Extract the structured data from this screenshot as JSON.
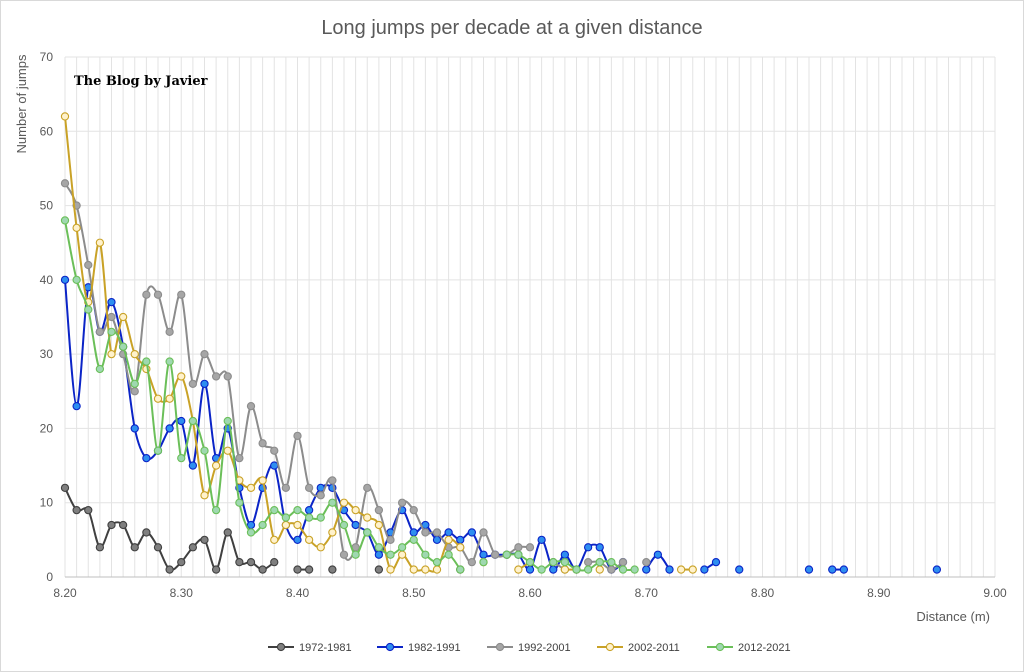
{
  "chart_data": {
    "type": "line",
    "title": "Long jumps per decade at a given distance",
    "watermark": "The Blog by Javier",
    "xlabel": "Distance (m)",
    "ylabel": "Number of jumps",
    "xlim": [
      8.2,
      9.0
    ],
    "ylim": [
      0,
      70
    ],
    "x_ticks": [
      "8.20",
      "8.30",
      "8.40",
      "8.50",
      "8.60",
      "8.70",
      "8.80",
      "8.90",
      "9.00"
    ],
    "y_ticks": [
      "0",
      "10",
      "20",
      "30",
      "40",
      "50",
      "60",
      "70"
    ],
    "grid": true,
    "legend_position": "bottom",
    "series": [
      {
        "name": "1972-1981",
        "color": "#404040",
        "marker_fill": "#7f7f7f",
        "segments": [
          [
            [
              8.2,
              12
            ],
            [
              8.21,
              9
            ],
            [
              8.22,
              9
            ],
            [
              8.23,
              4
            ],
            [
              8.24,
              7
            ],
            [
              8.25,
              7
            ],
            [
              8.26,
              4
            ],
            [
              8.27,
              6
            ],
            [
              8.28,
              4
            ],
            [
              8.29,
              1
            ],
            [
              8.3,
              2
            ],
            [
              8.31,
              4
            ],
            [
              8.32,
              5
            ],
            [
              8.33,
              1
            ],
            [
              8.34,
              6
            ],
            [
              8.35,
              2
            ],
            [
              8.36,
              2
            ],
            [
              8.37,
              1
            ],
            [
              8.38,
              2
            ]
          ],
          [
            [
              8.4,
              1
            ],
            [
              8.41,
              1
            ]
          ],
          [
            [
              8.43,
              1
            ]
          ],
          [
            [
              8.47,
              1
            ]
          ],
          [
            [
              8.54,
              1
            ]
          ]
        ]
      },
      {
        "name": "1982-1991",
        "color": "#0b24c7",
        "marker_fill": "#2e8ef0",
        "segments": [
          [
            [
              8.2,
              40
            ],
            [
              8.21,
              23
            ],
            [
              8.22,
              39
            ],
            [
              8.23,
              33
            ],
            [
              8.24,
              37
            ],
            [
              8.25,
              31
            ],
            [
              8.26,
              20
            ],
            [
              8.27,
              16
            ],
            [
              8.28,
              17
            ],
            [
              8.29,
              20
            ],
            [
              8.3,
              21
            ],
            [
              8.31,
              15
            ],
            [
              8.32,
              26
            ],
            [
              8.33,
              16
            ],
            [
              8.34,
              20
            ],
            [
              8.35,
              12
            ],
            [
              8.36,
              7
            ],
            [
              8.37,
              12
            ],
            [
              8.38,
              15
            ],
            [
              8.39,
              7
            ],
            [
              8.4,
              5
            ],
            [
              8.41,
              9
            ],
            [
              8.42,
              12
            ],
            [
              8.43,
              12
            ],
            [
              8.44,
              9
            ],
            [
              8.45,
              7
            ],
            [
              8.46,
              6
            ],
            [
              8.47,
              3
            ],
            [
              8.48,
              6
            ],
            [
              8.49,
              9
            ],
            [
              8.5,
              6
            ],
            [
              8.51,
              7
            ],
            [
              8.52,
              5
            ],
            [
              8.53,
              6
            ],
            [
              8.54,
              5
            ],
            [
              8.55,
              6
            ],
            [
              8.56,
              3
            ],
            [
              8.57,
              3
            ],
            [
              8.58,
              3
            ],
            [
              8.59,
              3
            ],
            [
              8.6,
              1
            ],
            [
              8.61,
              5
            ],
            [
              8.62,
              1
            ],
            [
              8.63,
              3
            ],
            [
              8.64,
              1
            ],
            [
              8.65,
              4
            ],
            [
              8.66,
              4
            ],
            [
              8.67,
              1
            ],
            [
              8.68,
              2
            ]
          ],
          [
            [
              8.7,
              1
            ],
            [
              8.71,
              3
            ],
            [
              8.72,
              1
            ]
          ],
          [
            [
              8.75,
              1
            ],
            [
              8.76,
              2
            ]
          ],
          [
            [
              8.78,
              1
            ]
          ],
          [
            [
              8.84,
              1
            ]
          ],
          [
            [
              8.86,
              1
            ],
            [
              8.87,
              1
            ]
          ],
          [
            [
              8.95,
              1
            ]
          ]
        ]
      },
      {
        "name": "1992-2001",
        "color": "#8c8c8c",
        "marker_fill": "#a6a6a6",
        "segments": [
          [
            [
              8.2,
              53
            ],
            [
              8.21,
              50
            ],
            [
              8.22,
              42
            ],
            [
              8.23,
              33
            ],
            [
              8.24,
              35
            ],
            [
              8.25,
              30
            ],
            [
              8.26,
              25
            ],
            [
              8.27,
              38
            ],
            [
              8.28,
              38
            ],
            [
              8.29,
              33
            ],
            [
              8.3,
              38
            ],
            [
              8.31,
              26
            ],
            [
              8.32,
              30
            ],
            [
              8.33,
              27
            ],
            [
              8.34,
              27
            ],
            [
              8.35,
              16
            ],
            [
              8.36,
              23
            ],
            [
              8.37,
              18
            ],
            [
              8.38,
              17
            ],
            [
              8.39,
              12
            ],
            [
              8.4,
              19
            ],
            [
              8.41,
              12
            ],
            [
              8.42,
              11
            ],
            [
              8.43,
              13
            ],
            [
              8.44,
              3
            ],
            [
              8.45,
              4
            ],
            [
              8.46,
              12
            ],
            [
              8.47,
              9
            ],
            [
              8.48,
              5
            ],
            [
              8.49,
              10
            ],
            [
              8.5,
              9
            ],
            [
              8.51,
              6
            ],
            [
              8.52,
              6
            ],
            [
              8.53,
              4
            ],
            [
              8.54,
              4
            ],
            [
              8.55,
              2
            ],
            [
              8.56,
              6
            ],
            [
              8.57,
              3
            ],
            [
              8.58,
              3
            ],
            [
              8.59,
              4
            ],
            [
              8.6,
              4
            ]
          ],
          [
            [
              8.62,
              2
            ],
            [
              8.63,
              1
            ]
          ],
          [
            [
              8.65,
              2
            ],
            [
              8.66,
              2
            ],
            [
              8.67,
              1
            ],
            [
              8.68,
              2
            ]
          ],
          [
            [
              8.7,
              2
            ]
          ]
        ]
      },
      {
        "name": "2002-2011",
        "color": "#c9a227",
        "marker_fill": "#fff2cc",
        "segments": [
          [
            [
              8.2,
              62
            ],
            [
              8.21,
              47
            ],
            [
              8.22,
              37
            ],
            [
              8.23,
              45
            ],
            [
              8.24,
              30
            ],
            [
              8.25,
              35
            ],
            [
              8.26,
              30
            ],
            [
              8.27,
              28
            ],
            [
              8.28,
              24
            ],
            [
              8.29,
              24
            ],
            [
              8.3,
              27
            ],
            [
              8.31,
              21
            ],
            [
              8.32,
              11
            ],
            [
              8.33,
              15
            ],
            [
              8.34,
              17
            ],
            [
              8.35,
              13
            ],
            [
              8.36,
              12
            ],
            [
              8.37,
              13
            ],
            [
              8.38,
              5
            ],
            [
              8.39,
              7
            ],
            [
              8.4,
              7
            ],
            [
              8.41,
              5
            ],
            [
              8.42,
              4
            ],
            [
              8.43,
              6
            ],
            [
              8.44,
              10
            ],
            [
              8.45,
              9
            ],
            [
              8.46,
              8
            ],
            [
              8.47,
              7
            ],
            [
              8.48,
              1
            ],
            [
              8.49,
              3
            ],
            [
              8.5,
              1
            ],
            [
              8.51,
              1
            ],
            [
              8.52,
              1
            ],
            [
              8.53,
              5
            ],
            [
              8.54,
              4
            ]
          ],
          [
            [
              8.56,
              2
            ]
          ],
          [
            [
              8.59,
              1
            ],
            [
              8.6,
              2
            ]
          ],
          [
            [
              8.63,
              1
            ],
            [
              8.64,
              1
            ]
          ],
          [
            [
              8.66,
              1
            ]
          ],
          [
            [
              8.73,
              1
            ],
            [
              8.74,
              1
            ]
          ]
        ]
      },
      {
        "name": "2012-2021",
        "color": "#6bbf59",
        "marker_fill": "#9fd8b0",
        "segments": [
          [
            [
              8.2,
              48
            ],
            [
              8.21,
              40
            ],
            [
              8.22,
              36
            ],
            [
              8.23,
              28
            ],
            [
              8.24,
              33
            ],
            [
              8.25,
              31
            ],
            [
              8.26,
              26
            ],
            [
              8.27,
              29
            ],
            [
              8.28,
              17
            ],
            [
              8.29,
              29
            ],
            [
              8.3,
              16
            ],
            [
              8.31,
              21
            ],
            [
              8.32,
              17
            ],
            [
              8.33,
              9
            ],
            [
              8.34,
              21
            ],
            [
              8.35,
              10
            ],
            [
              8.36,
              6
            ],
            [
              8.37,
              7
            ],
            [
              8.38,
              9
            ],
            [
              8.39,
              8
            ],
            [
              8.4,
              9
            ],
            [
              8.41,
              8
            ],
            [
              8.42,
              8
            ],
            [
              8.43,
              10
            ],
            [
              8.44,
              7
            ],
            [
              8.45,
              3
            ],
            [
              8.46,
              6
            ],
            [
              8.47,
              4
            ],
            [
              8.48,
              3
            ],
            [
              8.49,
              4
            ],
            [
              8.5,
              5
            ],
            [
              8.51,
              3
            ],
            [
              8.52,
              2
            ],
            [
              8.53,
              3
            ],
            [
              8.54,
              1
            ]
          ],
          [
            [
              8.56,
              2
            ]
          ],
          [
            [
              8.58,
              3
            ],
            [
              8.59,
              3
            ],
            [
              8.6,
              2
            ],
            [
              8.61,
              1
            ],
            [
              8.62,
              2
            ],
            [
              8.63,
              2
            ],
            [
              8.64,
              1
            ],
            [
              8.65,
              1
            ],
            [
              8.66,
              2
            ],
            [
              8.67,
              2
            ],
            [
              8.68,
              1
            ],
            [
              8.69,
              1
            ]
          ]
        ]
      }
    ]
  }
}
